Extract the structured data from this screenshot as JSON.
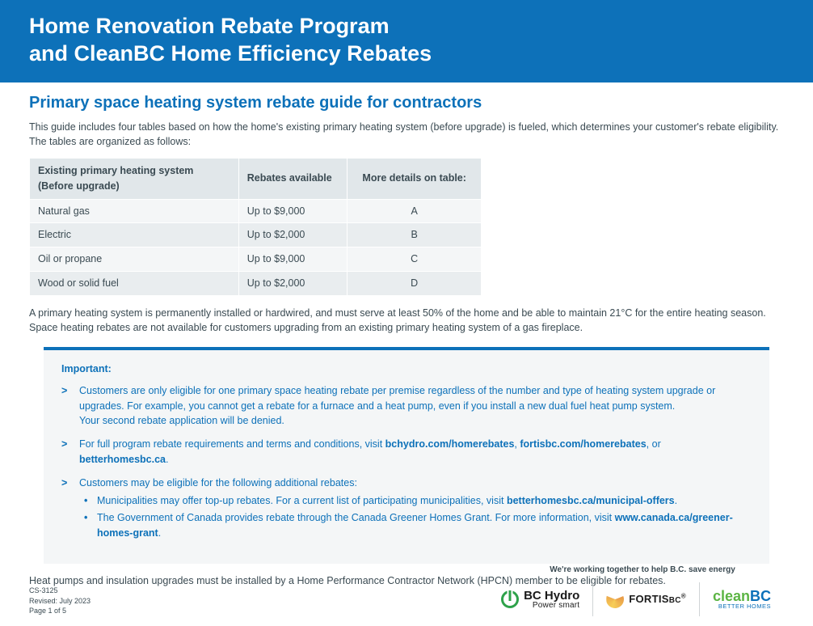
{
  "header": {
    "title_line1": "Home Renovation Rebate Program",
    "title_line2": "and CleanBC Home Efficiency Rebates"
  },
  "section": {
    "title": "Primary space heating system rebate guide for contractors",
    "intro": "This guide includes four tables based on how the home's existing primary heating system (before upgrade) is fueled, which determines your customer's rebate eligibility. The tables are organized as follows:"
  },
  "table": {
    "columns": [
      "Existing primary heating system (Before upgrade)",
      "Rebates available",
      "More details on table:"
    ],
    "rows": [
      [
        "Natural gas",
        "Up to $9,000",
        "A"
      ],
      [
        "Electric",
        "Up to $2,000",
        "B"
      ],
      [
        "Oil or propane",
        "Up to $9,000",
        "C"
      ],
      [
        "Wood or solid fuel",
        "Up to $2,000",
        "D"
      ]
    ],
    "col_widths": [
      "250px",
      "130px",
      "160px"
    ]
  },
  "body_text": "A primary heating system is permanently installed or hardwired, and must serve at least 50% of the home and be able to maintain 21°C for the entire heating season. Space heating rebates are not available for customers upgrading from an existing primary heating system of a gas fireplace.",
  "important": {
    "label": "Important:",
    "items": [
      {
        "text": "Customers are only eligible for one primary space heating rebate per premise regardless of the number and type of heating system upgrade or upgrades. For example, you cannot get a rebate for a furnace and a heat pump, even if you install a new dual fuel heat pump system.",
        "extra": "Your second rebate application will be denied."
      },
      {
        "text_pre": "For full program rebate requirements and terms and conditions, visit ",
        "link1": "bchydro.com/homerebates",
        "sep1": ", ",
        "link2": "fortisbc.com/homerebates",
        "sep2": ", or ",
        "link3": "betterhomesbc.ca",
        "tail": "."
      },
      {
        "text": "Customers may be eligible for the following additional rebates:",
        "subitems": [
          {
            "pre": "Municipalities may offer top-up rebates. For a current list of participating municipalities, visit ",
            "link": "betterhomesbc.ca/municipal-offers",
            "tail": "."
          },
          {
            "pre": "The Government of Canada provides rebate through the Canada Greener Homes Grant. For more information, visit ",
            "link": "www.canada.ca/greener-homes-grant",
            "tail": "."
          }
        ]
      }
    ]
  },
  "after_box": "Heat pumps and insulation upgrades must be installed by a Home Performance Contractor Network (HPCN) member to be eligible for rebates.",
  "footer": {
    "doc_id": "CS-3125",
    "revised": "Revised: July 2023",
    "page": "Page 1 of 5",
    "tagline": "We're working together to help B.C. save energy",
    "bch_l1": "BC Hydro",
    "bch_l2": "Power smart",
    "fortis": "FORTIS",
    "fortis_suffix": "BC",
    "cleanbc_1": "clean",
    "cleanbc_2": "BC",
    "cleanbc_sub": "BETTER HOMES"
  },
  "colors": {
    "brand_blue": "#0d71b9",
    "text": "#3a4a52",
    "box_bg": "#f4f6f7",
    "th_bg": "#e1e7ea"
  }
}
